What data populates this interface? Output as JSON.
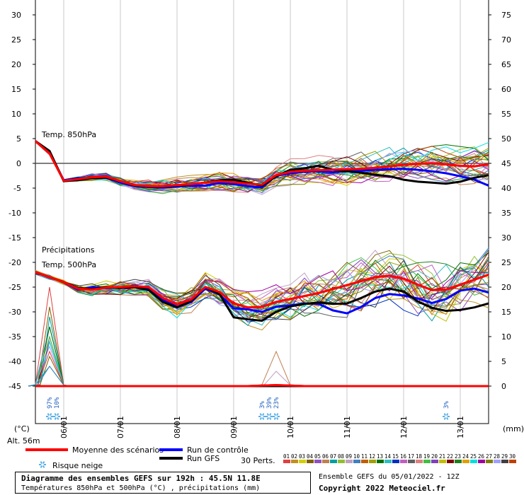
{
  "chart_data": {
    "type": "line",
    "title": "Diagramme des ensembles GEFS sur 192h : 45.5N 11.8E",
    "subtitle": "Températures 850hPa et 500hPa (°C) , précipitations (mm)",
    "left_axis": {
      "unit": "(°C)",
      "ticks": [
        30,
        25,
        20,
        15,
        10,
        5,
        0,
        -5,
        -10,
        -15,
        -20,
        -25,
        -30,
        -35,
        -40,
        -45
      ],
      "range": [
        -45,
        30
      ]
    },
    "right_axis": {
      "unit": "(mm)",
      "ticks": [
        75,
        70,
        65,
        60,
        55,
        50,
        45,
        40,
        35,
        30,
        25,
        20,
        15,
        10,
        5,
        0
      ],
      "range": [
        0,
        75
      ]
    },
    "x_ticks": [
      "06/01",
      "07/01",
      "08/01",
      "09/01",
      "10/01",
      "11/01",
      "12/01",
      "13/01"
    ],
    "panel_labels": {
      "t850": "Temp. 850hPa",
      "precip": "Précipitations",
      "t500": "Temp. 500hPa"
    },
    "altitude": "Alt. 56m",
    "hours": [
      0,
      6,
      12,
      18,
      24,
      30,
      36,
      42,
      48,
      54,
      60,
      66,
      72,
      78,
      84,
      90,
      96,
      102,
      108,
      114,
      120,
      126,
      132,
      138,
      144,
      150,
      156,
      162,
      168,
      174,
      180,
      186,
      192
    ],
    "series": [
      {
        "name": "Moyenne des scénarios",
        "color": "#ff0000",
        "t850": [
          4.5,
          2,
          -3.5,
          -3.2,
          -2.8,
          -2.7,
          -3.6,
          -4.4,
          -4.6,
          -4.6,
          -4.4,
          -4.2,
          -3.9,
          -3.6,
          -3.8,
          -4.1,
          -4.3,
          -2.4,
          -1.7,
          -1.5,
          -1.4,
          -1.3,
          -1.2,
          -1.1,
          -0.9,
          -0.6,
          -0.3,
          -0.1,
          0,
          -0.2,
          -0.5,
          -0.6,
          -0.2
        ],
        "t500": [
          -22,
          -23,
          -24,
          -25.3,
          -25.5,
          -25.1,
          -25,
          -24.8,
          -25,
          -27.2,
          -28.5,
          -27.5,
          -25,
          -26,
          -28.3,
          -29.1,
          -29,
          -28,
          -27.4,
          -26.8,
          -26.2,
          -25.4,
          -24.6,
          -23.8,
          -23,
          -22.7,
          -23.3,
          -24.5,
          -25.6,
          -25.5,
          -24.5,
          -23.5,
          -22.5
        ],
        "precip": [
          0,
          0,
          0,
          0,
          0,
          0,
          0,
          0,
          0,
          0,
          0,
          0,
          0,
          0,
          0,
          0,
          0.1,
          0.2,
          0.1,
          0,
          0,
          0,
          0,
          0,
          0,
          0,
          0,
          0,
          0,
          0,
          0,
          0,
          0
        ]
      },
      {
        "name": "Run de contrôle",
        "color": "#0000ff",
        "t850": [
          4.5,
          2.2,
          -3.4,
          -3,
          -3,
          -2.9,
          -3.9,
          -4.6,
          -4.8,
          -4.9,
          -4.7,
          -4.5,
          -4.5,
          -4,
          -4.2,
          -4.6,
          -4.9,
          -2.5,
          -2,
          -1.7,
          -1.6,
          -1.8,
          -1.6,
          -1.5,
          -1.3,
          -1.2,
          -1.1,
          -1.3,
          -1.6,
          -2,
          -2.6,
          -3.3,
          -4.5
        ],
        "t500": [
          -22,
          -23,
          -24,
          -25.5,
          -25,
          -25.2,
          -25.1,
          -24.7,
          -25.2,
          -27.6,
          -29,
          -28,
          -25.3,
          -26.5,
          -29.3,
          -29.5,
          -30,
          -29,
          -28.7,
          -28.3,
          -28.4,
          -29.7,
          -30.3,
          -29,
          -27.2,
          -26.4,
          -26.7,
          -27.3,
          -28.2,
          -27.4,
          -25.7,
          -25.3,
          -26.1
        ],
        "precip": [
          0,
          0,
          0,
          0,
          0,
          0,
          0,
          0,
          0,
          0,
          0,
          0,
          0,
          0,
          0,
          0,
          0,
          0,
          0,
          0,
          0,
          0,
          0,
          0,
          0,
          0,
          0,
          0,
          0,
          0,
          0,
          0,
          0
        ]
      },
      {
        "name": "Run GFS",
        "color": "#000000",
        "t850": [
          4.5,
          2.5,
          -3.6,
          -3.4,
          -3,
          -2.9,
          -3.6,
          -4.5,
          -4.7,
          -4.7,
          -4.5,
          -4.2,
          -3.9,
          -3.4,
          -3.3,
          -3.9,
          -4.5,
          -2.6,
          -1.3,
          -1,
          -0.5,
          -1.3,
          -1.6,
          -1.9,
          -2.3,
          -2.6,
          -3.3,
          -3.7,
          -3.9,
          -4.1,
          -3.7,
          -2.9,
          -2.4
        ],
        "t500": [
          -22,
          -23,
          -24,
          -25.2,
          -25.4,
          -25,
          -25.2,
          -25,
          -25.6,
          -28,
          -29.1,
          -27.8,
          -25,
          -26.4,
          -31.1,
          -31.5,
          -31.8,
          -30,
          -28.9,
          -28.4,
          -28.1,
          -28.4,
          -28.3,
          -27.2,
          -25.9,
          -25.3,
          -25.9,
          -27.9,
          -29.2,
          -29.8,
          -29.6,
          -29.1,
          -28.3
        ],
        "precip": [
          0,
          0,
          0,
          0,
          0,
          0,
          0,
          0,
          0,
          0,
          0,
          0,
          0,
          0,
          0,
          0,
          0,
          0,
          0,
          0,
          0,
          0,
          0,
          0,
          0,
          0,
          0,
          0,
          0,
          0,
          0,
          0,
          0
        ]
      }
    ],
    "precip_spikes": [
      {
        "at_hour": 6,
        "values": [
          20,
          16,
          14,
          12,
          12,
          10,
          10,
          9,
          9,
          8,
          7,
          6,
          4,
          4
        ]
      },
      {
        "at_hour": 102,
        "values": [
          7,
          3
        ]
      }
    ],
    "ensemble_colors": [
      "#e04040",
      "#c09020",
      "#d0d000",
      "#806000",
      "#9050c0",
      "#c08050",
      "#00a0a0",
      "#90c030",
      "#c0a0c0",
      "#4080c0",
      "#c06000",
      "#a0a000",
      "#007000",
      "#30c0c0",
      "#0030c0",
      "#c060c0",
      "#606060",
      "#e08080",
      "#40c040",
      "#8040c0",
      "#c0c000",
      "#800000",
      "#208020",
      "#e0a000",
      "#00e0e0",
      "#a000a0",
      "#808000",
      "#a0a0ff",
      "#404040",
      "#c04000"
    ],
    "snow_risk": [
      {
        "label": "97%",
        "at_hour": 6
      },
      {
        "label": "10%",
        "at_hour": 9
      },
      {
        "label": "3%",
        "at_hour": 96
      },
      {
        "label": "39%",
        "at_hour": 99
      },
      {
        "label": "23%",
        "at_hour": 102
      },
      {
        "label": "3%",
        "at_hour": 174
      }
    ]
  },
  "legend": {
    "mean": "Moyenne des scénarios",
    "control": "Run de contrôle",
    "gfs": "Run GFS",
    "snow": "Risque neige",
    "perts": "30 Perts.",
    "pert_numbers": [
      "01",
      "02",
      "03",
      "04",
      "05",
      "06",
      "07",
      "08",
      "09",
      "10",
      "11",
      "12",
      "13",
      "14",
      "15",
      "16",
      "17",
      "18",
      "19",
      "20",
      "21",
      "22",
      "23",
      "24",
      "25",
      "26",
      "27",
      "28",
      "29",
      "30"
    ]
  },
  "footer": {
    "title": "Diagramme des ensembles GEFS sur 192h : 45.5N 11.8E",
    "subtitle": "Températures 850hPa et 500hPa (°C) , précipitations (mm)",
    "run_info": "Ensemble GEFS du 05/01/2022 - 12Z",
    "copyright": "Copyright 2022 Meteociel.fr"
  }
}
